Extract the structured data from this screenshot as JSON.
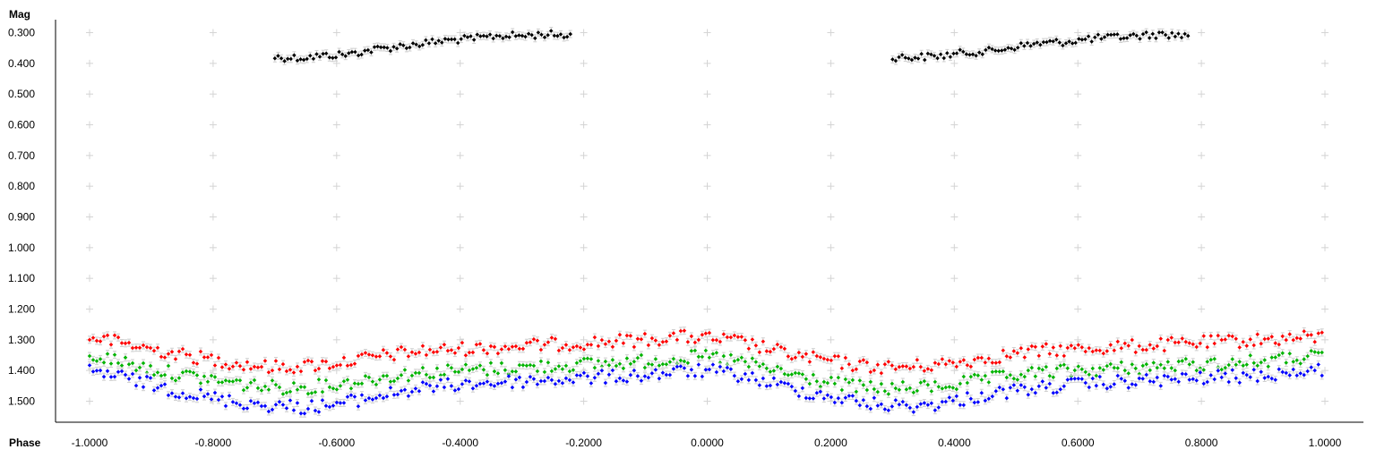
{
  "chart_data": {
    "type": "scatter",
    "title": "",
    "xlabel": "Phase",
    "ylabel": "Mag",
    "xlim": [
      -1.1,
      1.02
    ],
    "ylim": [
      1.58,
      0.27
    ],
    "y_inverted": true,
    "grid": "cross-marks",
    "x_ticks": [
      -1.0,
      -0.8,
      -0.6,
      -0.4,
      -0.2,
      0.0,
      0.2,
      0.4,
      0.6,
      0.8,
      1.0
    ],
    "x_tick_labels": [
      "-1.0000",
      "-0.8000",
      "-0.6000",
      "-0.4000",
      "-0.2000",
      "0.0000",
      "0.2000",
      "0.4000",
      "0.6000",
      "0.8000",
      "1.0000"
    ],
    "y_ticks": [
      0.3,
      0.4,
      0.5,
      0.6,
      0.7,
      0.8,
      0.9,
      1.0,
      1.1,
      1.2,
      1.3,
      1.4,
      1.5
    ],
    "y_tick_labels": [
      "0.300",
      "0.400",
      "0.500",
      "0.600",
      "0.700",
      "0.800",
      "0.900",
      "1.000",
      "1.100",
      "1.200",
      "1.300",
      "1.400",
      "1.500"
    ],
    "series": [
      {
        "color": "#000000",
        "x": [
          -0.7,
          -0.66,
          -0.62,
          -0.58,
          -0.54,
          -0.5,
          -0.46,
          -0.42,
          -0.38,
          -0.34,
          -0.3,
          -0.26,
          -0.22,
          0.3,
          0.34,
          0.38,
          0.42,
          0.46,
          0.5,
          0.54,
          0.58,
          0.62,
          0.66,
          0.7,
          0.74,
          0.78
        ],
        "y": [
          0.38,
          0.382,
          0.375,
          0.37,
          0.355,
          0.345,
          0.335,
          0.325,
          0.32,
          0.31,
          0.31,
          0.305,
          0.31,
          0.38,
          0.38,
          0.375,
          0.365,
          0.36,
          0.345,
          0.335,
          0.33,
          0.32,
          0.315,
          0.31,
          0.305,
          0.31
        ]
      },
      {
        "color": "#ff0000",
        "x": [
          -1.0,
          -0.95,
          -0.9,
          -0.85,
          -0.8,
          -0.75,
          -0.7,
          -0.65,
          -0.6,
          -0.55,
          -0.5,
          -0.45,
          -0.4,
          -0.35,
          -0.3,
          -0.25,
          -0.2,
          -0.15,
          -0.1,
          -0.05,
          0.0,
          0.05,
          0.1,
          0.15,
          0.2,
          0.25,
          0.3,
          0.35,
          0.4,
          0.45,
          0.5,
          0.55,
          0.6,
          0.65,
          0.7,
          0.75,
          0.8,
          0.85,
          0.9,
          0.95,
          1.0
        ],
        "y": [
          1.29,
          1.31,
          1.33,
          1.35,
          1.365,
          1.38,
          1.39,
          1.385,
          1.375,
          1.36,
          1.345,
          1.335,
          1.33,
          1.325,
          1.32,
          1.315,
          1.31,
          1.305,
          1.3,
          1.29,
          1.295,
          1.305,
          1.33,
          1.355,
          1.37,
          1.385,
          1.39,
          1.385,
          1.375,
          1.36,
          1.345,
          1.335,
          1.33,
          1.325,
          1.32,
          1.315,
          1.31,
          1.305,
          1.3,
          1.295,
          1.29
        ]
      },
      {
        "color": "#00b400",
        "x": [
          -1.0,
          -0.95,
          -0.9,
          -0.85,
          -0.8,
          -0.75,
          -0.7,
          -0.65,
          -0.6,
          -0.55,
          -0.5,
          -0.45,
          -0.4,
          -0.35,
          -0.3,
          -0.25,
          -0.2,
          -0.15,
          -0.1,
          -0.05,
          0.0,
          0.05,
          0.1,
          0.15,
          0.2,
          0.25,
          0.3,
          0.35,
          0.4,
          0.45,
          0.5,
          0.55,
          0.6,
          0.65,
          0.7,
          0.75,
          0.8,
          0.85,
          0.9,
          0.95,
          1.0
        ],
        "y": [
          1.35,
          1.37,
          1.395,
          1.415,
          1.43,
          1.445,
          1.455,
          1.455,
          1.445,
          1.43,
          1.415,
          1.405,
          1.4,
          1.395,
          1.39,
          1.385,
          1.38,
          1.375,
          1.37,
          1.36,
          1.355,
          1.37,
          1.395,
          1.42,
          1.44,
          1.455,
          1.46,
          1.455,
          1.445,
          1.43,
          1.415,
          1.405,
          1.4,
          1.395,
          1.39,
          1.385,
          1.38,
          1.375,
          1.37,
          1.36,
          1.355
        ]
      },
      {
        "color": "#0000ff",
        "x": [
          -1.0,
          -0.95,
          -0.9,
          -0.85,
          -0.8,
          -0.75,
          -0.7,
          -0.65,
          -0.6,
          -0.55,
          -0.5,
          -0.45,
          -0.4,
          -0.35,
          -0.3,
          -0.25,
          -0.2,
          -0.15,
          -0.1,
          -0.05,
          0.0,
          0.05,
          0.1,
          0.15,
          0.2,
          0.25,
          0.3,
          0.35,
          0.4,
          0.45,
          0.5,
          0.55,
          0.6,
          0.65,
          0.7,
          0.75,
          0.8,
          0.85,
          0.9,
          0.95,
          1.0
        ],
        "y": [
          1.4,
          1.42,
          1.445,
          1.47,
          1.49,
          1.505,
          1.515,
          1.52,
          1.51,
          1.49,
          1.47,
          1.455,
          1.445,
          1.44,
          1.435,
          1.43,
          1.425,
          1.42,
          1.415,
          1.405,
          1.4,
          1.415,
          1.44,
          1.465,
          1.485,
          1.505,
          1.515,
          1.515,
          1.5,
          1.48,
          1.465,
          1.455,
          1.445,
          1.44,
          1.435,
          1.43,
          1.425,
          1.42,
          1.415,
          1.405,
          1.4
        ]
      }
    ]
  }
}
